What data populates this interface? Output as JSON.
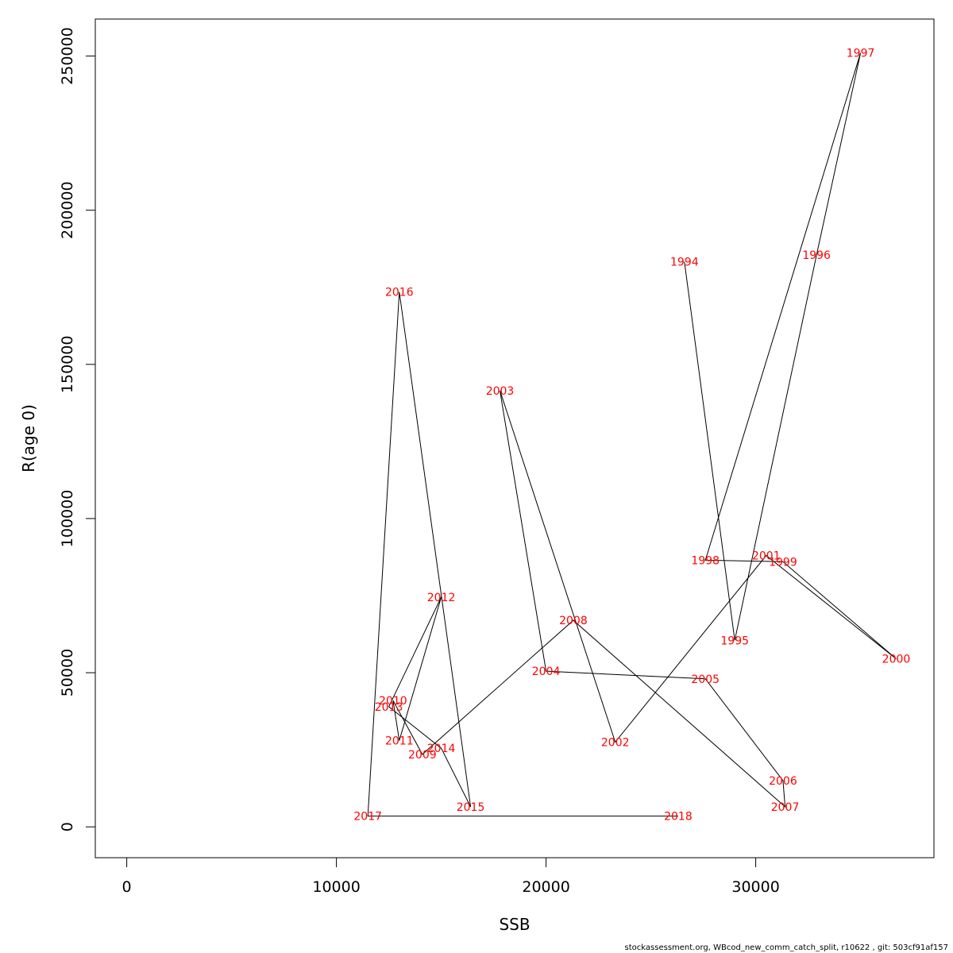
{
  "chart_data": {
    "type": "line",
    "xlabel": "SSB",
    "ylabel": "R(age 0)",
    "xlim": [
      -1500,
      38500
    ],
    "ylim": [
      -10000,
      262000
    ],
    "xticks": [
      0,
      10000,
      20000,
      30000
    ],
    "xtick_labels": [
      "0",
      "10000",
      "20000",
      "30000"
    ],
    "yticks": [
      0,
      50000,
      100000,
      150000,
      200000,
      250000
    ],
    "ytick_labels": [
      "0",
      "50000",
      "100000",
      "150000",
      "200000",
      "250000"
    ],
    "grid": false,
    "line_color": "#000000",
    "label_color": "#ff0000",
    "points": [
      {
        "year": "1994",
        "ssb": 26600,
        "r": 183300
      },
      {
        "year": "1995",
        "ssb": 29000,
        "r": 60500
      },
      {
        "year": "1996",
        "ssb": 32900,
        "r": 185500
      },
      {
        "year": "1997",
        "ssb": 35000,
        "r": 251000
      },
      {
        "year": "1998",
        "ssb": 27600,
        "r": 86500
      },
      {
        "year": "1999",
        "ssb": 31300,
        "r": 86000
      },
      {
        "year": "2000",
        "ssb": 36700,
        "r": 54500
      },
      {
        "year": "2001",
        "ssb": 30500,
        "r": 88000
      },
      {
        "year": "2002",
        "ssb": 23300,
        "r": 27500
      },
      {
        "year": "2003",
        "ssb": 17800,
        "r": 141500
      },
      {
        "year": "2004",
        "ssb": 20000,
        "r": 50500
      },
      {
        "year": "2005",
        "ssb": 27600,
        "r": 48000
      },
      {
        "year": "2006",
        "ssb": 31300,
        "r": 15000
      },
      {
        "year": "2007",
        "ssb": 31400,
        "r": 6500
      },
      {
        "year": "2008",
        "ssb": 21300,
        "r": 67000
      },
      {
        "year": "2009",
        "ssb": 14100,
        "r": 23500
      },
      {
        "year": "2010",
        "ssb": 12700,
        "r": 41000
      },
      {
        "year": "2011",
        "ssb": 13000,
        "r": 28000
      },
      {
        "year": "2012",
        "ssb": 15000,
        "r": 74500
      },
      {
        "year": "2013",
        "ssb": 12500,
        "r": 39000
      },
      {
        "year": "2014",
        "ssb": 15000,
        "r": 25500
      },
      {
        "year": "2015",
        "ssb": 16400,
        "r": 6500
      },
      {
        "year": "2016",
        "ssb": 13000,
        "r": 173500
      },
      {
        "year": "2017",
        "ssb": 11500,
        "r": 3500
      },
      {
        "year": "2018",
        "ssb": 26300,
        "r": 3500
      }
    ]
  },
  "footer": "stockassessment.org, WBcod_new_comm_catch_split, r10622 , git: 503cf91af157"
}
